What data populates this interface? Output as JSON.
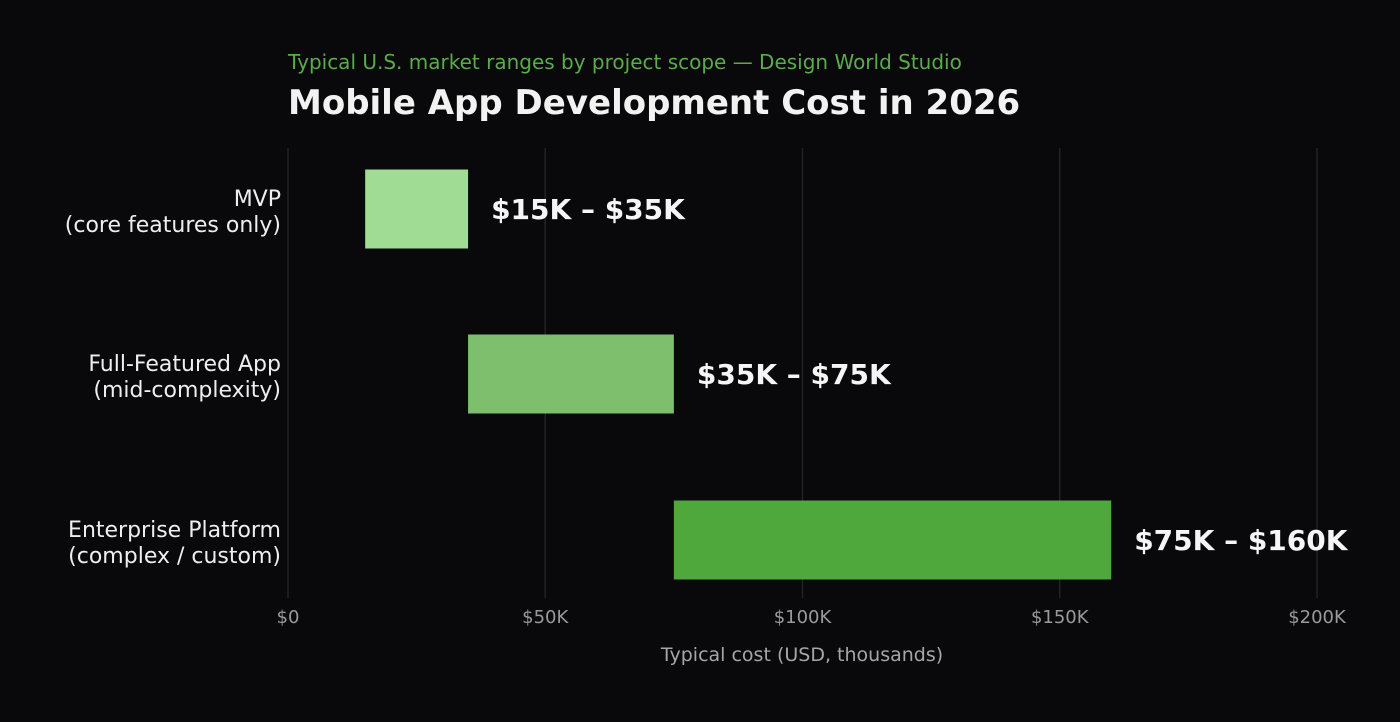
{
  "chart_data": {
    "type": "bar",
    "orientation": "horizontal",
    "subtitle": "Typical U.S. market ranges by project scope — Design World Studio",
    "title": "Mobile App Development Cost in 2026",
    "xlabel": "Typical cost (USD, thousands)",
    "ylabel": "",
    "xlim": [
      0,
      200
    ],
    "xticks": [
      0,
      50,
      100,
      150,
      200
    ],
    "xtick_labels": [
      "$0",
      "$50K",
      "$100K",
      "$150K",
      "$200K"
    ],
    "grid": "vertical",
    "categories": [
      [
        "MVP",
        "(core features only)"
      ],
      [
        "Full-Featured App",
        "(mid-complexity)"
      ],
      [
        "Enterprise Platform",
        "(complex / custom)"
      ]
    ],
    "ranges": [
      {
        "low": 15,
        "high": 35,
        "label": "$15K – $35K",
        "color": "#a0dc93"
      },
      {
        "low": 35,
        "high": 75,
        "label": "$35K – $75K",
        "color": "#7dbf6d"
      },
      {
        "low": 75,
        "high": 160,
        "label": "$75K – $160K",
        "color": "#4ea83b"
      }
    ],
    "colors": {
      "background": "#09090b",
      "subtitle": "#5aac4a",
      "title": "#f2f2f2",
      "category_text": "#eeeeee",
      "tick_text": "#9a9a9a",
      "axis_label": "#a6a6a6",
      "grid": "#222226",
      "value_label": "#f5f5f5"
    }
  }
}
